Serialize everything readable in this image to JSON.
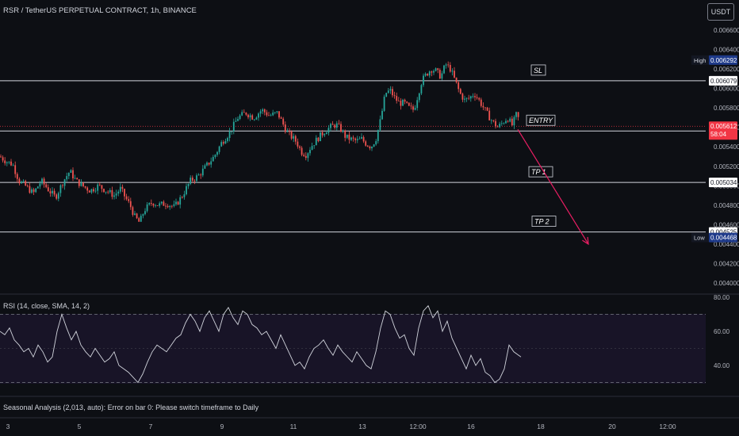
{
  "header": {
    "title": "RSR / TetherUS PERPETUAL CONTRACT, 1h, BINANCE",
    "currency_button": "USDT"
  },
  "chart_data": {
    "type": "candlestick",
    "symbol": "RSR / TetherUS PERPETUAL CONTRACT",
    "interval": "1h",
    "exchange": "BINANCE",
    "price_axis": {
      "ticks": [
        "0.006600",
        "0.006400",
        "0.006200",
        "0.006000",
        "0.005800",
        "0.005600",
        "0.005400",
        "0.005200",
        "0.005000",
        "0.004800",
        "0.004600",
        "0.004400",
        "0.004200",
        "0.004000"
      ],
      "range": [
        0.0039,
        0.0068
      ]
    },
    "time_axis": {
      "ticks": [
        "3",
        "5",
        "7",
        "9",
        "11",
        "13",
        "12:00",
        "16",
        "18",
        "20",
        "12:00"
      ]
    },
    "high": {
      "label": "High",
      "value": "0.006292"
    },
    "low": {
      "label": "Low",
      "value": "0.004468"
    },
    "current_price": {
      "value": "0.005612",
      "countdown": "58:04"
    },
    "levels": [
      {
        "name": "SL",
        "value": "0.006079"
      },
      {
        "name": "ENTRY",
        "value": "0.005563"
      },
      {
        "name": "TP 1",
        "value": "0.005034"
      },
      {
        "name": "TP 2",
        "value": "0.004525"
      }
    ],
    "price_path": [
      [
        0,
        0.0053
      ],
      [
        8,
        0.00525
      ],
      [
        16,
        0.00522
      ],
      [
        24,
        0.00505
      ],
      [
        32,
        0.005
      ],
      [
        42,
        0.00492
      ],
      [
        52,
        0.00505
      ],
      [
        62,
        0.00495
      ],
      [
        70,
        0.00488
      ],
      [
        80,
        0.00505
      ],
      [
        88,
        0.00515
      ],
      [
        96,
        0.00505
      ],
      [
        104,
        0.005
      ],
      [
        114,
        0.00495
      ],
      [
        124,
        0.005
      ],
      [
        134,
        0.00495
      ],
      [
        144,
        0.0049
      ],
      [
        152,
        0.00497
      ],
      [
        158,
        0.00488
      ],
      [
        164,
        0.0048
      ],
      [
        170,
        0.00468
      ],
      [
        176,
        0.00462
      ],
      [
        182,
        0.00475
      ],
      [
        192,
        0.00483
      ],
      [
        200,
        0.0048
      ],
      [
        210,
        0.00482
      ],
      [
        220,
        0.00478
      ],
      [
        230,
        0.0049
      ],
      [
        240,
        0.00505
      ],
      [
        250,
        0.0051
      ],
      [
        260,
        0.0052
      ],
      [
        270,
        0.0053
      ],
      [
        280,
        0.00545
      ],
      [
        290,
        0.00555
      ],
      [
        300,
        0.0057
      ],
      [
        310,
        0.00575
      ],
      [
        320,
        0.0057
      ],
      [
        330,
        0.00578
      ],
      [
        340,
        0.00572
      ],
      [
        350,
        0.00575
      ],
      [
        356,
        0.00565
      ],
      [
        362,
        0.00555
      ],
      [
        368,
        0.0055
      ],
      [
        374,
        0.00545
      ],
      [
        380,
        0.00535
      ],
      [
        386,
        0.00532
      ],
      [
        392,
        0.0054
      ],
      [
        400,
        0.00548
      ],
      [
        408,
        0.00555
      ],
      [
        416,
        0.0056
      ],
      [
        424,
        0.00563
      ],
      [
        430,
        0.00558
      ],
      [
        436,
        0.0055
      ],
      [
        442,
        0.00548
      ],
      [
        450,
        0.00546
      ],
      [
        456,
        0.00548
      ],
      [
        462,
        0.00543
      ],
      [
        468,
        0.0054
      ],
      [
        474,
        0.00548
      ],
      [
        480,
        0.00568
      ],
      [
        486,
        0.00595
      ],
      [
        492,
        0.00598
      ],
      [
        498,
        0.0059
      ],
      [
        504,
        0.00585
      ],
      [
        510,
        0.00585
      ],
      [
        516,
        0.0058
      ],
      [
        522,
        0.00578
      ],
      [
        526,
        0.0059
      ],
      [
        532,
        0.00608
      ],
      [
        538,
        0.00615
      ],
      [
        544,
        0.0062
      ],
      [
        550,
        0.00618
      ],
      [
        556,
        0.00612
      ],
      [
        562,
        0.00625
      ],
      [
        568,
        0.0062
      ],
      [
        574,
        0.00608
      ],
      [
        580,
        0.00595
      ],
      [
        586,
        0.00588
      ],
      [
        592,
        0.0059
      ],
      [
        598,
        0.00595
      ],
      [
        604,
        0.00588
      ],
      [
        610,
        0.0058
      ],
      [
        616,
        0.00572
      ],
      [
        622,
        0.00565
      ],
      [
        628,
        0.0056
      ],
      [
        634,
        0.00565
      ],
      [
        640,
        0.0057
      ],
      [
        646,
        0.00562
      ],
      [
        652,
        0.00575
      ],
      [
        656,
        0.00561
      ]
    ],
    "projection": {
      "from": [
        653,
        0.00558
      ],
      "to": [
        742,
        0.0044
      ]
    },
    "rsi": {
      "label": "RSI (14, close, SMA, 14, 2)",
      "axis_ticks": [
        "80.00",
        "60.00",
        "40.00"
      ],
      "range": [
        20,
        80
      ],
      "upper": 70,
      "middle": 50,
      "lower": 30,
      "path": [
        [
          0,
          60
        ],
        [
          6,
          58
        ],
        [
          12,
          62
        ],
        [
          18,
          55
        ],
        [
          24,
          52
        ],
        [
          30,
          48
        ],
        [
          36,
          50
        ],
        [
          42,
          45
        ],
        [
          48,
          52
        ],
        [
          54,
          48
        ],
        [
          60,
          42
        ],
        [
          66,
          45
        ],
        [
          72,
          60
        ],
        [
          78,
          70
        ],
        [
          84,
          62
        ],
        [
          90,
          55
        ],
        [
          96,
          60
        ],
        [
          102,
          52
        ],
        [
          108,
          48
        ],
        [
          114,
          45
        ],
        [
          120,
          50
        ],
        [
          126,
          46
        ],
        [
          132,
          42
        ],
        [
          138,
          44
        ],
        [
          144,
          48
        ],
        [
          150,
          40
        ],
        [
          156,
          38
        ],
        [
          162,
          36
        ],
        [
          168,
          33
        ],
        [
          174,
          30
        ],
        [
          180,
          35
        ],
        [
          186,
          42
        ],
        [
          192,
          48
        ],
        [
          198,
          52
        ],
        [
          204,
          50
        ],
        [
          210,
          48
        ],
        [
          216,
          52
        ],
        [
          222,
          56
        ],
        [
          228,
          58
        ],
        [
          234,
          65
        ],
        [
          240,
          70
        ],
        [
          246,
          66
        ],
        [
          252,
          60
        ],
        [
          258,
          68
        ],
        [
          264,
          72
        ],
        [
          270,
          66
        ],
        [
          276,
          60
        ],
        [
          282,
          70
        ],
        [
          288,
          74
        ],
        [
          294,
          68
        ],
        [
          300,
          64
        ],
        [
          306,
          72
        ],
        [
          312,
          70
        ],
        [
          318,
          64
        ],
        [
          324,
          62
        ],
        [
          330,
          58
        ],
        [
          336,
          60
        ],
        [
          342,
          55
        ],
        [
          348,
          50
        ],
        [
          354,
          58
        ],
        [
          360,
          52
        ],
        [
          366,
          46
        ],
        [
          372,
          40
        ],
        [
          378,
          42
        ],
        [
          384,
          38
        ],
        [
          390,
          45
        ],
        [
          396,
          50
        ],
        [
          402,
          52
        ],
        [
          408,
          55
        ],
        [
          414,
          50
        ],
        [
          420,
          46
        ],
        [
          426,
          52
        ],
        [
          432,
          48
        ],
        [
          438,
          45
        ],
        [
          444,
          42
        ],
        [
          450,
          48
        ],
        [
          456,
          44
        ],
        [
          462,
          40
        ],
        [
          468,
          38
        ],
        [
          474,
          48
        ],
        [
          480,
          62
        ],
        [
          486,
          72
        ],
        [
          492,
          70
        ],
        [
          498,
          62
        ],
        [
          504,
          56
        ],
        [
          510,
          58
        ],
        [
          516,
          50
        ],
        [
          522,
          46
        ],
        [
          528,
          62
        ],
        [
          534,
          72
        ],
        [
          540,
          75
        ],
        [
          546,
          68
        ],
        [
          552,
          72
        ],
        [
          558,
          60
        ],
        [
          564,
          66
        ],
        [
          570,
          56
        ],
        [
          576,
          50
        ],
        [
          582,
          44
        ],
        [
          588,
          38
        ],
        [
          594,
          46
        ],
        [
          600,
          40
        ],
        [
          606,
          44
        ],
        [
          612,
          36
        ],
        [
          618,
          34
        ],
        [
          624,
          30
        ],
        [
          630,
          32
        ],
        [
          636,
          38
        ],
        [
          642,
          52
        ],
        [
          648,
          48
        ],
        [
          654,
          46
        ],
        [
          657,
          45
        ]
      ]
    }
  },
  "indicators": {
    "seasonal": "Seasonal Analysis (2,013, auto): Error on bar 0: Please switch timeframe to Daily"
  },
  "colors": {
    "up": "#26a69a",
    "down": "#ef5350",
    "background": "#0d0f14",
    "rsi_line": "#d1d4dc",
    "projection": "#e91e63",
    "level_line": "#d1d4dc",
    "current_price": "#f23645"
  }
}
